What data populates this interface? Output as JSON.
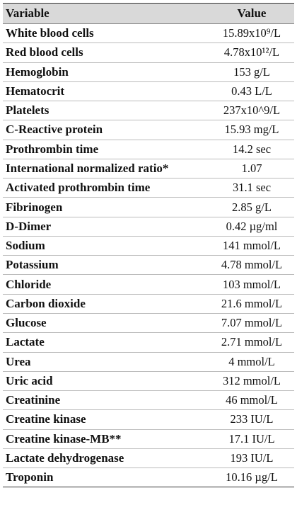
{
  "table": {
    "header": [
      "Variable",
      "Value"
    ],
    "rows": [
      [
        "White blood cells",
        "15.89x10⁹/L"
      ],
      [
        "Red blood cells",
        "4.78x10¹²/L"
      ],
      [
        "Hemoglobin",
        "153 g/L"
      ],
      [
        "Hematocrit",
        "0.43 L/L"
      ],
      [
        "Platelets",
        "237x10^9/L"
      ],
      [
        "C-Reactive protein",
        "15.93 mg/L"
      ],
      [
        "Prothrombin time",
        "14.2  sec"
      ],
      [
        "International normalized ratio*",
        "1.07"
      ],
      [
        "Activated prothrombin time",
        "31.1 sec"
      ],
      [
        "Fibrinogen",
        "2.85 g/L"
      ],
      [
        "D-Dimer",
        "0.42 µg/ml"
      ],
      [
        "Sodium",
        "141 mmol/L"
      ],
      [
        "Potassium",
        "4.78 mmol/L"
      ],
      [
        "Chloride",
        "103 mmol/L"
      ],
      [
        "Carbon dioxide",
        "21.6 mmol/L"
      ],
      [
        "Glucose",
        "7.07 mmol/L"
      ],
      [
        "Lactate",
        "2.71 mmol/L"
      ],
      [
        "Urea",
        "4 mmol/L"
      ],
      [
        "Uric acid",
        "312 mmol/L"
      ],
      [
        "Creatinine",
        "46 mmol/L"
      ],
      [
        "Creatine kinase",
        "233 IU/L"
      ],
      [
        "Creatine kinase-MB**",
        "17.1 IU/L"
      ],
      [
        "Lactate dehydrogenase",
        "193 IU/L"
      ],
      [
        "Troponin",
        "10.16 µg/L"
      ]
    ]
  }
}
